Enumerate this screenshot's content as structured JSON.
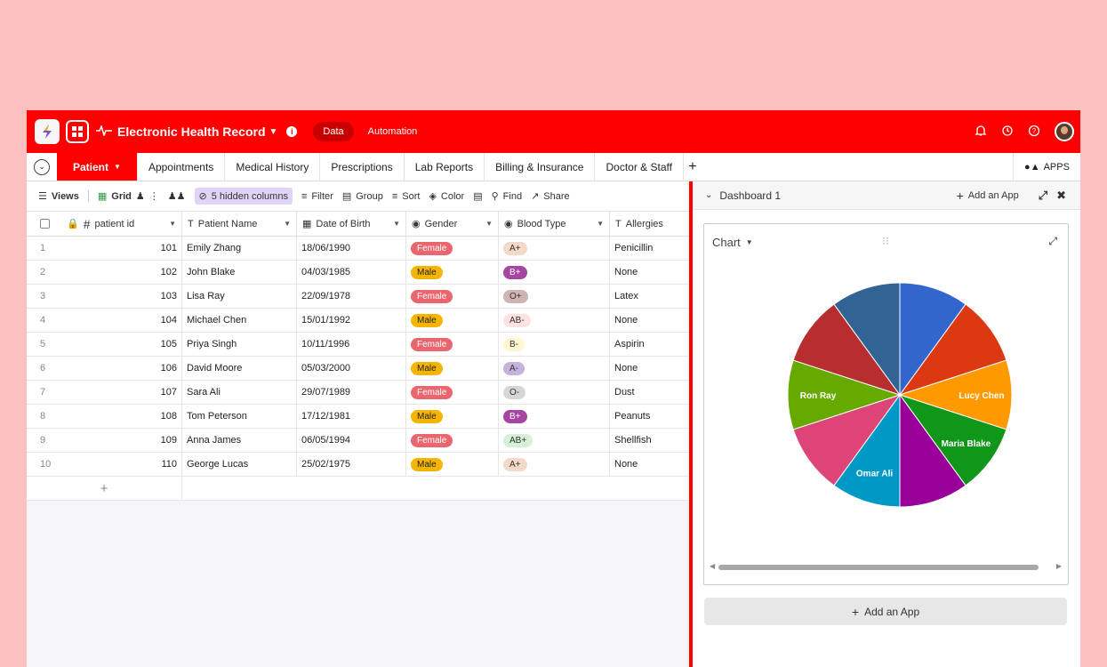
{
  "app": {
    "title": "Electronic Health Record",
    "nav_data": "Data",
    "nav_automation": "Automation",
    "colors": {
      "brand": "#ff0000",
      "background": "#fdc0c0"
    }
  },
  "tabs": {
    "active": "Patient",
    "items": [
      "Appointments",
      "Medical History",
      "Prescriptions",
      "Lab Reports",
      "Billing & Insurance",
      "Doctor & Staff"
    ],
    "apps": "APPS"
  },
  "toolbar": {
    "views": "Views",
    "grid": "Grid",
    "hidden": "5 hidden columns",
    "filter": "Filter",
    "group": "Group",
    "sort": "Sort",
    "color": "Color",
    "find": "Find",
    "share": "Share"
  },
  "columns": {
    "id": "patient id",
    "name": "Patient Name",
    "dob": "Date of Birth",
    "gender": "Gender",
    "blood": "Blood Type",
    "allergies": "Allergies"
  },
  "rows": [
    {
      "n": "1",
      "id": "101",
      "name": "Emily Zhang",
      "dob": "18/06/1990",
      "gender": "Female",
      "blood": "A+",
      "allergy": "Penicillin",
      "bbg": "#f3d9c8",
      "bfg": "#333"
    },
    {
      "n": "2",
      "id": "102",
      "name": "John Blake",
      "dob": "04/03/1985",
      "gender": "Male",
      "blood": "B+",
      "allergy": "None",
      "bbg": "#a646a2",
      "bfg": "#fff"
    },
    {
      "n": "3",
      "id": "103",
      "name": "Lisa Ray",
      "dob": "22/09/1978",
      "gender": "Female",
      "blood": "O+",
      "allergy": "Latex",
      "bbg": "#cfb4b4",
      "bfg": "#333"
    },
    {
      "n": "4",
      "id": "104",
      "name": "Michael Chen",
      "dob": "15/01/1992",
      "gender": "Male",
      "blood": "AB-",
      "allergy": "None",
      "bbg": "#fde2e2",
      "bfg": "#333"
    },
    {
      "n": "5",
      "id": "105",
      "name": "Priya Singh",
      "dob": "10/11/1996",
      "gender": "Female",
      "blood": "B-",
      "allergy": "Aspirin",
      "bbg": "#fff5cf",
      "bfg": "#333"
    },
    {
      "n": "6",
      "id": "106",
      "name": "David Moore",
      "dob": "05/03/2000",
      "gender": "Male",
      "blood": "A-",
      "allergy": "None",
      "bbg": "#c6b3dc",
      "bfg": "#333"
    },
    {
      "n": "7",
      "id": "107",
      "name": "Sara Ali",
      "dob": "29/07/1989",
      "gender": "Female",
      "blood": "O-",
      "allergy": "Dust",
      "bbg": "#d6d6d6",
      "bfg": "#333"
    },
    {
      "n": "8",
      "id": "108",
      "name": "Tom Peterson",
      "dob": "17/12/1981",
      "gender": "Male",
      "blood": "B+",
      "allergy": "Peanuts",
      "bbg": "#a646a2",
      "bfg": "#fff"
    },
    {
      "n": "9",
      "id": "109",
      "name": "Anna James",
      "dob": "06/05/1994",
      "gender": "Female",
      "blood": "AB+",
      "allergy": "Shellfish",
      "bbg": "#d6f0d6",
      "bfg": "#333"
    },
    {
      "n": "10",
      "id": "110",
      "name": "George Lucas",
      "dob": "25/02/1975",
      "gender": "Male",
      "blood": "A+",
      "allergy": "None",
      "bbg": "#f3d9c8",
      "bfg": "#333"
    }
  ],
  "dashboard": {
    "title": "Dashboard 1",
    "add_app": "Add an App",
    "chart_label": "Chart",
    "add_app_bottom": "Add an App"
  },
  "chart_data": {
    "type": "pie",
    "title": "",
    "slices": [
      {
        "label": "",
        "value": 1,
        "color": "#3366cc"
      },
      {
        "label": "",
        "value": 1,
        "color": "#dc3912"
      },
      {
        "label": "Lucy Chen",
        "value": 1,
        "color": "#ff9900"
      },
      {
        "label": "Maria Blake",
        "value": 1,
        "color": "#109618"
      },
      {
        "label": "",
        "value": 1,
        "color": "#990099"
      },
      {
        "label": "Omar Ali",
        "value": 1,
        "color": "#0099c6"
      },
      {
        "label": "",
        "value": 1,
        "color": "#dd4477"
      },
      {
        "label": "Ron Ray",
        "value": 1,
        "color": "#66aa00"
      },
      {
        "label": "",
        "value": 1,
        "color": "#b82e2e"
      },
      {
        "label": "",
        "value": 1,
        "color": "#316395"
      }
    ]
  }
}
